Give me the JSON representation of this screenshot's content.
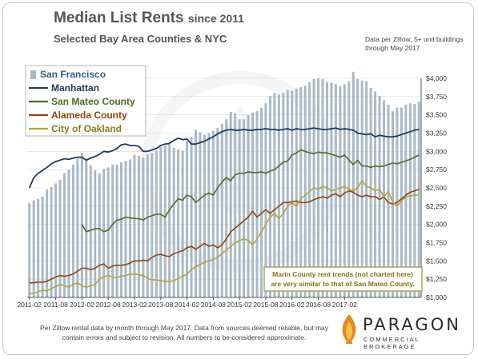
{
  "header": {
    "title": "Median List Rents",
    "title_suffix": "since 2011",
    "subtitle": "Selected Bay Area Counties & NYC",
    "source_note": "Data per Zillow, 5+ unit buildings through May 2017"
  },
  "footer": {
    "note": "Per Zillow rental data by month through May 2017. Data from sources deemed reliable, but may contain errors and subject to revision. All numbers to be considered approximate.",
    "logo_name": "PARAGON",
    "logo_tagline": "COMMERCIAL BROKERAGE",
    "logo_icon": "paragon-flame-icon"
  },
  "annotation": {
    "text_line1": "Marin County rent trends (not charted here)",
    "text_line2": "are very similar to that of San Mateo County."
  },
  "chart_data": {
    "type": "bar",
    "title": "Median List Rents since 2011",
    "subtitle": "Selected Bay Area Counties & NYC",
    "ylim": [
      1000,
      4000
    ],
    "yticks": [
      "$1,000",
      "$1,250",
      "$1,500",
      "$1,750",
      "$2,000",
      "$2,250",
      "$2,500",
      "$2,750",
      "$3,000",
      "$3,250",
      "$3,500",
      "$3,750",
      "$4,000"
    ],
    "ytick_values": [
      1000,
      1250,
      1500,
      1750,
      2000,
      2250,
      2500,
      2750,
      3000,
      3250,
      3500,
      3750,
      4000
    ],
    "xtick_labels": [
      "2011-02",
      "2011-08",
      "2012-02",
      "2012-08",
      "2013-02",
      "2013-08",
      "2014-02",
      "2014-08",
      "2015-02",
      "2015-08",
      "2016-02",
      "2016-08",
      "2017-02"
    ],
    "grid": true,
    "legend_placement": "top-left",
    "colors": {
      "San Francisco": "#a9b9c6",
      "Manhattan": "#1f3a63",
      "San Mateo County": "#4d6b25",
      "Alameda County": "#8b4513",
      "City of Oakland": "#b5a238"
    },
    "bar_series": {
      "name": "San Francisco",
      "values": [
        2290,
        2330,
        2350,
        2380,
        2480,
        2510,
        2560,
        2610,
        2700,
        2750,
        2820,
        2900,
        2980,
        2900,
        2810,
        2740,
        2700,
        2760,
        2780,
        2820,
        2820,
        2850,
        2870,
        2890,
        2950,
        2940,
        2920,
        2960,
        2980,
        3010,
        3060,
        3080,
        3100,
        3050,
        3030,
        3010,
        3140,
        3200,
        3300,
        3260,
        3230,
        3250,
        3280,
        3320,
        3380,
        3440,
        3540,
        3520,
        3440,
        3440,
        3500,
        3530,
        3550,
        3600,
        3660,
        3760,
        3800,
        3780,
        3800,
        3840,
        3830,
        3860,
        3880,
        3900,
        3950,
        3990,
        4000,
        3990,
        3950,
        3940,
        3920,
        3890,
        3920,
        3960,
        4090,
        3990,
        3970,
        3960,
        3870,
        3820,
        3760,
        3700,
        3640,
        3550,
        3600,
        3600,
        3640,
        3660,
        3650,
        3680
      ]
    },
    "line_series": [
      {
        "name": "Manhattan",
        "values": [
          2500,
          2640,
          2700,
          2740,
          2780,
          2830,
          2860,
          2880,
          2900,
          2890,
          2910,
          2920,
          2920,
          2880,
          2910,
          2930,
          2960,
          3000,
          2990,
          3010,
          3040,
          3090,
          3100,
          3080,
          3080,
          3070,
          3000,
          3000,
          3020,
          3040,
          3080,
          3100,
          3110,
          3150,
          3180,
          3160,
          3170,
          3100,
          3100,
          3120,
          3140,
          3170,
          3200,
          3240,
          3270,
          3290,
          3300,
          3290,
          3290,
          3300,
          3290,
          3290,
          3300,
          3300,
          3310,
          3300,
          3300,
          3290,
          3300,
          3310,
          3290,
          3310,
          3300,
          3300,
          3310,
          3320,
          3310,
          3300,
          3300,
          3310,
          3320,
          3300,
          3310,
          3300,
          3290,
          3250,
          3240,
          3230,
          3240,
          3200,
          3220,
          3210,
          3200,
          3200,
          3210,
          3230,
          3250,
          3270,
          3290,
          3300
        ]
      },
      {
        "name": "San Mateo County",
        "values": [
          null,
          null,
          null,
          null,
          null,
          null,
          null,
          null,
          null,
          null,
          null,
          null,
          2000,
          1900,
          1920,
          1940,
          1940,
          1900,
          1920,
          2000,
          2060,
          2070,
          2100,
          2090,
          2080,
          2080,
          2060,
          2100,
          2120,
          2140,
          2140,
          2100,
          2200,
          2280,
          2350,
          2330,
          2400,
          2380,
          2300,
          2350,
          2400,
          2430,
          2400,
          2500,
          2580,
          2640,
          2600,
          2680,
          2700,
          2700,
          2720,
          2710,
          2710,
          2720,
          2700,
          2730,
          2750,
          2800,
          2850,
          2870,
          2950,
          2980,
          3020,
          3000,
          2980,
          2970,
          2990,
          2980,
          2980,
          2960,
          2940,
          2920,
          2950,
          2880,
          2820,
          2880,
          2800,
          2800,
          2780,
          2800,
          2790,
          2800,
          2820,
          2840,
          2830,
          2850,
          2870,
          2890,
          2920,
          2950
        ]
      },
      {
        "name": "Alameda County",
        "values": [
          1200,
          1200,
          1210,
          1210,
          1220,
          1250,
          1280,
          1300,
          1290,
          1300,
          1320,
          1360,
          1400,
          1400,
          1380,
          1400,
          1440,
          1460,
          1400,
          1430,
          1440,
          1440,
          1450,
          1470,
          1500,
          1500,
          1510,
          1500,
          1550,
          1580,
          1590,
          1570,
          1560,
          1600,
          1620,
          1640,
          1680,
          1700,
          1660,
          1700,
          1740,
          1700,
          1720,
          1680,
          1720,
          1800,
          1900,
          1950,
          2000,
          2050,
          2100,
          2180,
          2100,
          2150,
          2200,
          2150,
          2200,
          2250,
          2300,
          2300,
          2310,
          2320,
          2300,
          2300,
          2310,
          2340,
          2360,
          2380,
          2360,
          2400,
          2420,
          2380,
          2430,
          2460,
          2440,
          2400,
          2380,
          2400,
          2380,
          2380,
          2340,
          2380,
          2300,
          2280,
          2300,
          2350,
          2400,
          2440,
          2460,
          2480
        ]
      },
      {
        "name": "City of Oakland",
        "values": [
          1050,
          1060,
          1080,
          1100,
          1090,
          1120,
          1150,
          1180,
          1160,
          1140,
          1180,
          1200,
          1160,
          1140,
          1160,
          1180,
          1250,
          1280,
          1300,
          1280,
          1270,
          1290,
          1300,
          1320,
          1320,
          1310,
          1300,
          1260,
          1240,
          1240,
          1230,
          1220,
          1220,
          1230,
          1260,
          1290,
          1320,
          1380,
          1420,
          1450,
          1480,
          1500,
          1520,
          1550,
          1600,
          1650,
          1700,
          1750,
          1780,
          1800,
          1780,
          1720,
          1800,
          1900,
          2000,
          2100,
          2150,
          2080,
          2150,
          2250,
          2300,
          2250,
          2350,
          2400,
          2450,
          2500,
          2480,
          2520,
          2500,
          2460,
          2480,
          2500,
          2520,
          2480,
          2460,
          2500,
          2600,
          2520,
          2500,
          2460,
          2480,
          2380,
          2450,
          2300,
          2250,
          2320,
          2380,
          2390,
          2400,
          2400
        ]
      }
    ]
  }
}
